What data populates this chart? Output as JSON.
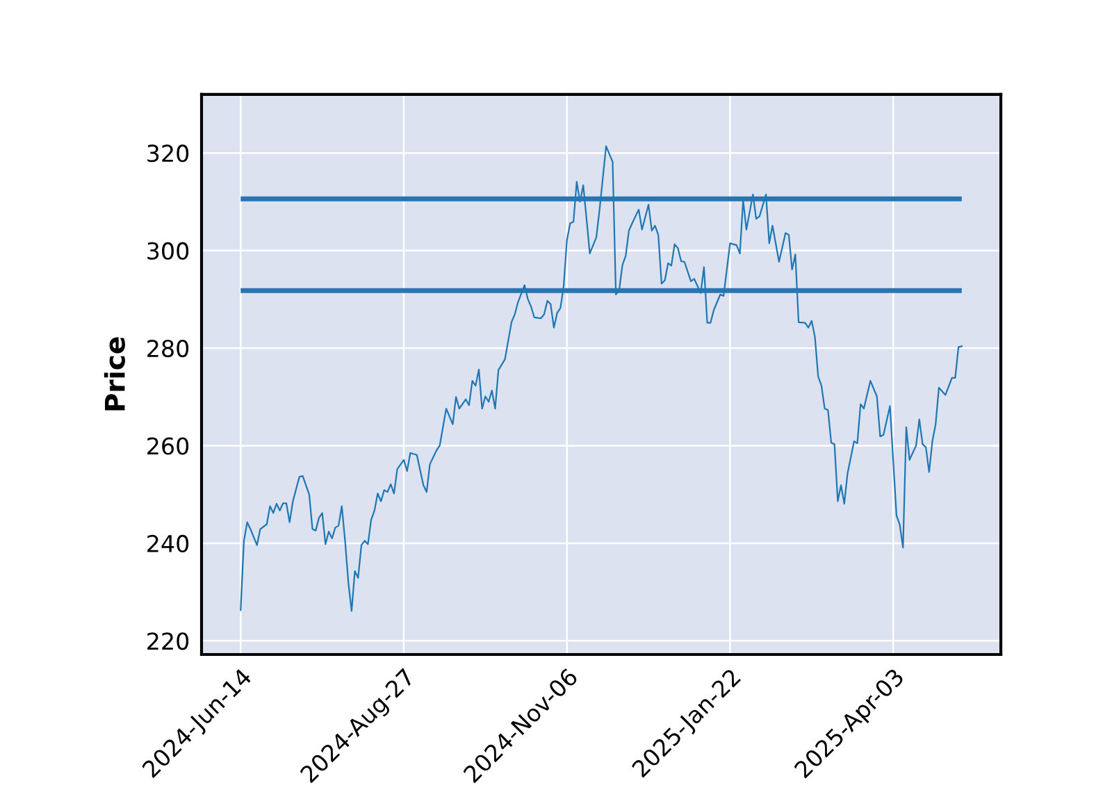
{
  "chart_data": {
    "type": "line",
    "ylabel": "Price",
    "ylim": [
      217.2,
      332
    ],
    "categories": [
      "2024-Jun-14",
      null,
      null,
      null,
      null,
      null,
      null,
      null,
      null,
      null,
      null,
      null,
      null,
      null,
      null,
      null,
      null,
      null,
      null,
      null,
      null,
      null,
      null,
      null,
      null,
      null,
      null,
      null,
      null,
      null,
      null,
      null,
      null,
      null,
      null,
      null,
      null,
      null,
      null,
      null,
      null,
      null,
      null,
      null,
      null,
      null,
      null,
      null,
      null,
      null,
      "2024-Aug-27",
      null,
      null,
      null,
      null,
      null,
      null,
      null,
      null,
      null,
      null,
      null,
      null,
      null,
      null,
      null,
      null,
      null,
      null,
      null,
      null,
      null,
      null,
      null,
      null,
      null,
      null,
      null,
      null,
      null,
      null,
      null,
      null,
      null,
      null,
      null,
      null,
      null,
      null,
      null,
      null,
      null,
      null,
      null,
      null,
      null,
      null,
      null,
      null,
      null,
      "2024-Nov-06",
      null,
      null,
      null,
      null,
      null,
      null,
      null,
      null,
      null,
      null,
      null,
      null,
      null,
      null,
      null,
      null,
      null,
      null,
      null,
      null,
      null,
      null,
      null,
      null,
      null,
      null,
      null,
      null,
      null,
      null,
      null,
      null,
      null,
      null,
      null,
      null,
      null,
      null,
      null,
      null,
      null,
      null,
      null,
      null,
      null,
      null,
      null,
      null,
      null,
      "2025-Jan-22",
      null,
      null,
      null,
      null,
      null,
      null,
      null,
      null,
      null,
      null,
      null,
      null,
      null,
      null,
      null,
      null,
      null,
      null,
      null,
      null,
      null,
      null,
      null,
      null,
      null,
      null,
      null,
      null,
      null,
      null,
      null,
      null,
      null,
      null,
      null,
      null,
      null,
      null,
      null,
      null,
      null,
      null,
      null,
      null,
      null,
      null,
      null,
      null,
      null,
      "2025-Apr-03",
      null,
      null,
      null,
      null,
      null,
      null,
      null,
      null,
      null,
      null,
      null,
      null,
      null,
      null,
      null,
      null,
      null,
      null,
      null,
      null,
      null
    ],
    "yticks": [
      220,
      240,
      260,
      280,
      300,
      320
    ],
    "grid": true,
    "marker": "none",
    "line_style": "solid",
    "series": [
      {
        "color": "#1f77b4",
        "values": [
          226.3,
          240.5,
          244.3,
          242.9,
          null,
          239.6,
          242.9,
          null,
          243.9,
          247.6,
          246.2,
          248.1,
          246.7,
          248.2,
          248.2,
          244.3,
          248.6,
          null,
          253.6,
          253.8,
          null,
          250,
          242.9,
          242.6,
          245.2,
          246.2,
          239.8,
          242.4,
          241,
          243.2,
          243.6,
          247.6,
          240.5,
          232,
          226.1,
          234.3,
          232.9,
          239.6,
          240.5,
          239.8,
          244.8,
          246.7,
          250.2,
          248.6,
          250.9,
          250.5,
          252.1,
          250.2,
          255.2,
          null,
          257.1,
          254.8,
          258.5,
          null,
          258.1,
          null,
          251.9,
          250.5,
          256.2,
          null,
          259,
          260,
          null,
          267.6,
          null,
          264.4,
          270,
          267.6,
          null,
          269.5,
          268.3,
          273.3,
          272.3,
          275.6,
          267.6,
          270.1,
          269,
          271.3,
          267.6,
          275.5,
          null,
          277.7,
          null,
          285.3,
          286.9,
          289.4,
          null,
          292.9,
          290.1,
          288.5,
          286.3,
          null,
          286.1,
          286.9,
          289.7,
          289,
          284.2,
          287.2,
          288.2,
          292.7,
          302.2,
          305.6,
          305.9,
          314.1,
          310,
          313.4,
          306.5,
          299.4,
          null,
          302.7,
          308.4,
          null,
          321.4,
          null,
          318.2,
          291,
          291.8,
          297,
          298.9,
          304.1,
          305.6,
          null,
          308.4,
          304.3,
          null,
          309.4,
          304.1,
          305.1,
          303.2,
          293.2,
          293.9,
          297.4,
          296.9,
          301.3,
          300.5,
          297.8,
          297.7,
          null,
          293.7,
          294.2,
          null,
          291.3,
          296.6,
          285.2,
          285.2,
          287.8,
          null,
          291,
          290.7,
          null,
          301.5,
          null,
          301.1,
          299.4,
          310.3,
          304.3,
          null,
          311.5,
          306.5,
          307,
          null,
          311.5,
          301.5,
          305.1,
          null,
          297.7,
          null,
          303.6,
          303.2,
          296.1,
          299.2,
          285.3,
          null,
          285.2,
          284.2,
          285.6,
          282.3,
          274.2,
          272.3,
          267.6,
          267.3,
          260.6,
          260.3,
          248.6,
          251.9,
          248.1,
          254.3,
          null,
          260.9,
          260.5,
          268.5,
          267.6,
          null,
          273.3,
          null,
          270.1,
          261.9,
          262.2,
          null,
          268.1,
          null,
          245.7,
          243.8,
          239.1,
          263.8,
          257.1,
          null,
          260,
          265.4,
          260.3,
          259.7,
          254.6,
          260.9,
          264.4,
          271.9,
          null,
          270.4,
          null,
          273.9,
          273.9,
          280.2,
          280.4
        ]
      }
    ],
    "ref_lines": [
      {
        "axis": "y",
        "value": 310.6,
        "color": "#2a75b0"
      },
      {
        "axis": "y",
        "value": 291.8,
        "color": "#2a75b0"
      }
    ]
  }
}
